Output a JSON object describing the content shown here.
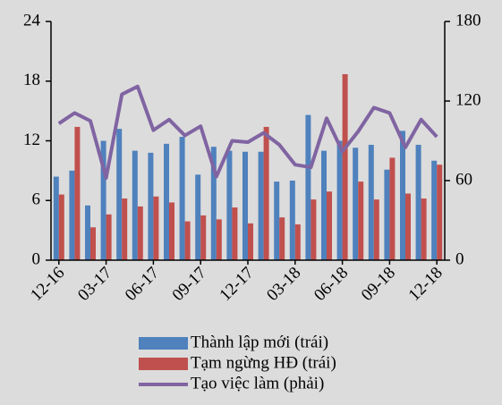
{
  "chart_data": {
    "type": "bar_line",
    "categories": [
      "12-16",
      null,
      null,
      "03-17",
      null,
      null,
      "06-17",
      null,
      null,
      "09-17",
      null,
      null,
      "12-17",
      null,
      null,
      "03-18",
      null,
      null,
      "06-18",
      null,
      null,
      "09-18",
      null,
      null,
      "12-18"
    ],
    "series": [
      {
        "name": "Thành lập mới (trái)",
        "color": "#4f81bd",
        "kind": "bar",
        "axis": "y",
        "values": [
          8.4,
          9,
          5.5,
          12,
          13.2,
          11,
          10.8,
          11.7,
          12.4,
          8.6,
          11.4,
          11,
          10.9,
          10.9,
          7.9,
          8,
          14.6,
          11,
          12,
          11.3,
          11.6,
          9.1,
          13,
          11.6,
          10
        ]
      },
      {
        "name": "Tạm ngừng HĐ (trái)",
        "color": "#c0504d",
        "kind": "bar",
        "axis": "y",
        "values": [
          6.6,
          13.4,
          3.3,
          4.6,
          6.2,
          5.4,
          6.4,
          5.8,
          3.9,
          4.5,
          4.1,
          5.3,
          3.7,
          13.4,
          4.3,
          3.6,
          6.1,
          6.9,
          18.7,
          7.9,
          6.1,
          10.3,
          6.7,
          6.2,
          9.6
        ]
      },
      {
        "name": "Tạo việc làm (phải)",
        "color": "#8064a2",
        "kind": "line",
        "axis": "y2",
        "values": [
          103,
          111,
          105,
          62,
          125,
          131,
          98,
          106,
          94,
          101,
          63,
          90,
          89,
          96,
          87,
          72,
          70,
          107,
          82,
          97,
          115,
          111,
          85,
          106,
          93
        ]
      }
    ],
    "ylim": [
      0,
      24
    ],
    "yticks": [
      0,
      6,
      12,
      18,
      24
    ],
    "y2lim": [
      0,
      180
    ],
    "y2ticks": [
      0,
      60,
      120,
      180
    ]
  }
}
